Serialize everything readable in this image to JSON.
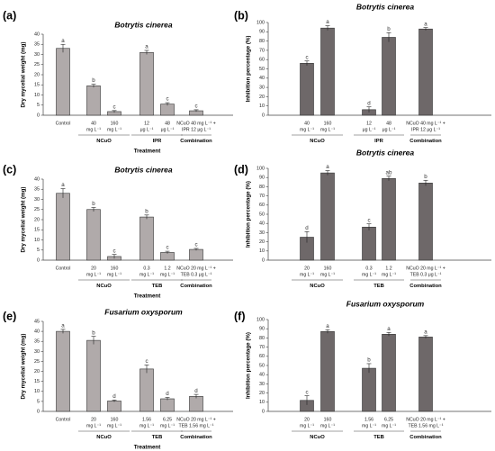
{
  "chart_data": [
    {
      "panel": "(a)",
      "type": "bar",
      "title": "Botrytis cinerea",
      "ylabel": "Dry mycelial weight (mg)",
      "xlabel": "Treatment",
      "ylim": [
        0,
        40
      ],
      "ytick_step": 5,
      "bar_color": "#b0aaaa",
      "categories": [
        [
          "Control"
        ],
        [
          "40",
          "mg L⁻¹"
        ],
        [
          "160",
          "mg L⁻¹"
        ],
        [
          "12",
          "μg L⁻¹"
        ],
        [
          "48",
          "μg L⁻¹"
        ],
        [
          "NCuO 40 mg L⁻¹ +",
          "IPR 12 μg L⁻¹"
        ]
      ],
      "values": [
        33,
        14.5,
        1.8,
        31,
        5.5,
        2.2
      ],
      "errors": [
        2.0,
        0.8,
        0.5,
        1.0,
        0.7,
        0.5
      ],
      "letters": [
        "a",
        "b",
        "c",
        "a",
        "c",
        "c"
      ],
      "groups": [
        {
          "label": "NCuO",
          "from": 1,
          "to": 2
        },
        {
          "label": "IPR",
          "from": 3,
          "to": 4
        },
        {
          "label": "Combination",
          "from": 5,
          "to": 5
        }
      ]
    },
    {
      "panel": "(b)",
      "type": "bar",
      "title": "Botrytis cinerea",
      "ylabel": "Inhibition percentage (%)",
      "xlabel": "",
      "ylim": [
        0,
        100
      ],
      "ytick_step": 10,
      "bar_color": "#6e6869",
      "categories": [
        [
          "40",
          "mg L⁻¹"
        ],
        [
          "160",
          "mg L⁻¹"
        ],
        [
          "12",
          "μg L⁻¹"
        ],
        [
          "48",
          "μg L⁻¹"
        ],
        [
          "NCuO 40 mg L⁻¹ +",
          "IPR 12 μg L⁻¹"
        ]
      ],
      "values": [
        56,
        94,
        6,
        84,
        93
      ],
      "errors": [
        2.5,
        2.5,
        3.0,
        5.0,
        1.5
      ],
      "letters": [
        "c",
        "a",
        "d",
        "b",
        "a"
      ],
      "groups": [
        {
          "label": "NCuO",
          "from": 0,
          "to": 1
        },
        {
          "label": "IPR",
          "from": 2,
          "to": 3
        },
        {
          "label": "Combination",
          "from": 4,
          "to": 4
        }
      ]
    },
    {
      "panel": "(c)",
      "type": "bar",
      "title": "Botrytis cinerea",
      "ylabel": "Dry mycelial weight (mg)",
      "xlabel": "Treatment",
      "ylim": [
        0,
        40
      ],
      "ytick_step": 5,
      "bar_color": "#b0aaaa",
      "categories": [
        [
          "Control"
        ],
        [
          "20",
          "mg L⁻¹"
        ],
        [
          "160",
          "mg L⁻¹"
        ],
        [
          "0.3",
          "mg L⁻¹"
        ],
        [
          "1.2",
          "mg L⁻¹"
        ],
        [
          "NCuO 20 mg L⁻¹ +",
          "TEB 0.3 μg L⁻¹"
        ]
      ],
      "values": [
        33,
        25,
        1.8,
        21.3,
        3.8,
        5.3
      ],
      "errors": [
        2.3,
        1.0,
        1.0,
        1.0,
        0.6,
        0.5
      ],
      "letters": [
        "a",
        "b",
        "c",
        "b",
        "c",
        "c"
      ],
      "groups": [
        {
          "label": "NCuO",
          "from": 1,
          "to": 2
        },
        {
          "label": "TEB",
          "from": 3,
          "to": 4
        },
        {
          "label": "Combination",
          "from": 5,
          "to": 5
        }
      ]
    },
    {
      "panel": "(d)",
      "type": "bar",
      "title": "Botrytis cinerea",
      "ylabel": "Inhibition percentage (%)",
      "xlabel": "",
      "ylim": [
        0,
        100
      ],
      "ytick_step": 10,
      "bar_color": "#6e6869",
      "categories": [
        [
          "20",
          "mg L⁻¹"
        ],
        [
          "160",
          "mg L⁻¹"
        ],
        [
          "0.3",
          "mg L⁻¹"
        ],
        [
          "1.2",
          "mg L⁻¹"
        ],
        [
          "NCuO 20 mg L⁻¹ +",
          "TEB 0.3 μg L⁻¹"
        ]
      ],
      "values": [
        25,
        95,
        36,
        89,
        84
      ],
      "errors": [
        6.0,
        2.5,
        3.5,
        2.5,
        3.0
      ],
      "letters": [
        "d",
        "a",
        "c",
        "ab",
        "b"
      ],
      "groups": [
        {
          "label": "NCuO",
          "from": 0,
          "to": 1
        },
        {
          "label": "TEB",
          "from": 2,
          "to": 3
        },
        {
          "label": "Combination",
          "from": 4,
          "to": 4
        }
      ]
    },
    {
      "panel": "(e)",
      "type": "bar",
      "title": "Fusarium oxysporum",
      "ylabel": "Dry mycelial weight (mg)",
      "xlabel": "Treatment",
      "ylim": [
        0,
        45
      ],
      "ytick_step": 5,
      "bar_color": "#b0aaaa",
      "categories": [
        [
          "Control"
        ],
        [
          "20",
          "mg L⁻¹"
        ],
        [
          "160",
          "mg L⁻¹"
        ],
        [
          "1.56",
          "mg L⁻¹"
        ],
        [
          "6.25",
          "mg L⁻¹"
        ],
        [
          "NCuO 20 mg L⁻¹ +",
          "TEB 1.56 mg L⁻¹"
        ]
      ],
      "values": [
        40,
        35.5,
        5.2,
        21.2,
        6.3,
        7.5
      ],
      "errors": [
        1.0,
        2.0,
        0.5,
        2.0,
        0.7,
        1.0
      ],
      "letters": [
        "a",
        "b",
        "d",
        "c",
        "d",
        "d"
      ],
      "groups": [
        {
          "label": "NCuO",
          "from": 1,
          "to": 2
        },
        {
          "label": "TEB",
          "from": 3,
          "to": 4
        },
        {
          "label": "Combination",
          "from": 5,
          "to": 5
        }
      ]
    },
    {
      "panel": "(f)",
      "type": "bar",
      "title": "Fusarium oxysporum",
      "ylabel": "Inhibition percentage (%)",
      "xlabel": "",
      "ylim": [
        0,
        100
      ],
      "ytick_step": 10,
      "bar_color": "#6e6869",
      "categories": [
        [
          "20",
          "mg L⁻¹"
        ],
        [
          "160",
          "mg L⁻¹"
        ],
        [
          "1.56",
          "mg L⁻¹"
        ],
        [
          "6.25",
          "mg L⁻¹"
        ],
        [
          "NCuO 20 mg L⁻¹ +",
          "TEB 1.56 mg L⁻¹"
        ]
      ],
      "values": [
        12,
        87,
        47,
        84,
        81
      ],
      "errors": [
        5.0,
        2.0,
        5.0,
        2.0,
        1.5
      ],
      "letters": [
        "c",
        "a",
        "b",
        "a",
        "a"
      ],
      "groups": [
        {
          "label": "NCuO",
          "from": 0,
          "to": 1
        },
        {
          "label": "TEB",
          "from": 2,
          "to": 3
        },
        {
          "label": "Combination",
          "from": 4,
          "to": 4
        }
      ]
    }
  ]
}
